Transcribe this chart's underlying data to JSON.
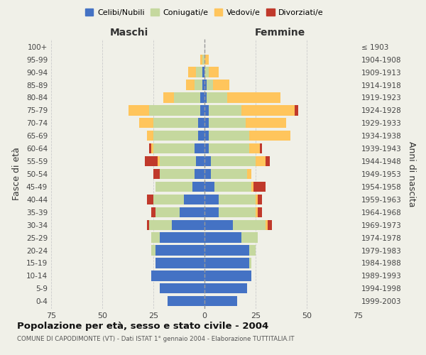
{
  "age_groups": [
    "0-4",
    "5-9",
    "10-14",
    "15-19",
    "20-24",
    "25-29",
    "30-34",
    "35-39",
    "40-44",
    "45-49",
    "50-54",
    "55-59",
    "60-64",
    "65-69",
    "70-74",
    "75-79",
    "80-84",
    "85-89",
    "90-94",
    "95-99",
    "100+"
  ],
  "birth_years": [
    "1999-2003",
    "1994-1998",
    "1989-1993",
    "1984-1988",
    "1979-1983",
    "1974-1978",
    "1969-1973",
    "1964-1968",
    "1959-1963",
    "1954-1958",
    "1949-1953",
    "1944-1948",
    "1939-1943",
    "1934-1938",
    "1929-1933",
    "1924-1928",
    "1919-1923",
    "1914-1918",
    "1909-1913",
    "1904-1908",
    "≤ 1903"
  ],
  "male_celibi": [
    18,
    22,
    26,
    24,
    24,
    22,
    16,
    12,
    10,
    6,
    5,
    4,
    5,
    3,
    3,
    2,
    2,
    1,
    1,
    0,
    0
  ],
  "male_coniugati": [
    0,
    0,
    0,
    0,
    2,
    4,
    11,
    12,
    15,
    18,
    17,
    18,
    20,
    22,
    22,
    25,
    13,
    4,
    3,
    1,
    0
  ],
  "male_vedovi": [
    0,
    0,
    0,
    0,
    0,
    0,
    0,
    0,
    0,
    0,
    0,
    1,
    1,
    3,
    7,
    10,
    5,
    4,
    4,
    1,
    0
  ],
  "male_divorziati": [
    0,
    0,
    0,
    0,
    0,
    0,
    1,
    2,
    3,
    0,
    3,
    6,
    1,
    0,
    0,
    0,
    0,
    0,
    0,
    0,
    0
  ],
  "female_celibi": [
    16,
    21,
    23,
    22,
    22,
    18,
    14,
    7,
    7,
    5,
    3,
    3,
    2,
    2,
    2,
    2,
    1,
    1,
    0,
    0,
    0
  ],
  "female_coniugati": [
    0,
    0,
    0,
    1,
    3,
    8,
    16,
    18,
    18,
    18,
    18,
    22,
    20,
    20,
    18,
    16,
    10,
    3,
    2,
    0,
    0
  ],
  "female_vedovi": [
    0,
    0,
    0,
    0,
    0,
    0,
    1,
    1,
    1,
    1,
    2,
    5,
    5,
    20,
    20,
    26,
    26,
    8,
    5,
    2,
    0
  ],
  "female_divorziati": [
    0,
    0,
    0,
    0,
    0,
    0,
    2,
    2,
    2,
    6,
    0,
    2,
    1,
    0,
    0,
    2,
    0,
    0,
    0,
    0,
    0
  ],
  "colors": {
    "celibi": "#4472c4",
    "coniugati": "#c5d89e",
    "vedovi": "#ffc55c",
    "divorziati": "#c0392b"
  },
  "title": "Popolazione per età, sesso e stato civile - 2004",
  "subtitle": "COMUNE DI CAPODIMONTE (VT) - Dati ISTAT 1° gennaio 2004 - Elaborazione TUTTITALIA.IT",
  "xlabel_left": "Maschi",
  "xlabel_right": "Femmine",
  "ylabel_left": "Fasce di età",
  "ylabel_right": "Anni di nascita",
  "xlim": 75,
  "bg_color": "#f0f0e8",
  "grid_color": "#cccccc"
}
